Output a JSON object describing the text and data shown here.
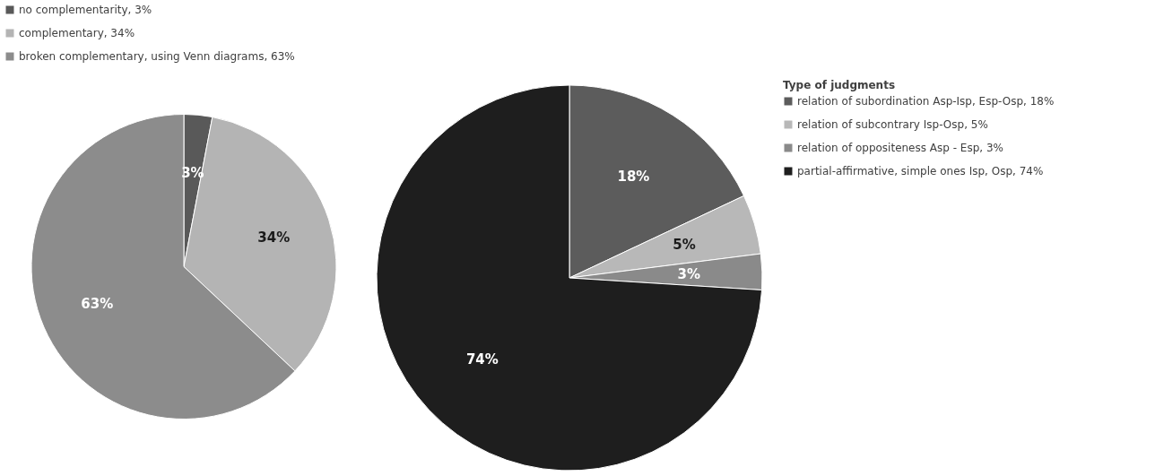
{
  "chart_data": [
    {
      "type": "pie",
      "categories": [
        "no complementarity, 3%",
        "complementary, 34%",
        "broken complementary, using Venn diagrams, 63%"
      ],
      "values": [
        3,
        34,
        63
      ],
      "value_labels": [
        "3%",
        "34%",
        "63%"
      ],
      "colors": [
        "#595959",
        "#b4b4b4",
        "#8c8c8c"
      ],
      "legend": "top left"
    },
    {
      "type": "pie",
      "legend_title": "Type of judgments",
      "categories": [
        "relation of subordination Asp-Isp, Esp-Osp, 18%",
        "relation of subcontrary Isp-Osp, 5%",
        "relation of oppositeness Asp - Esp, 3%",
        "partial-affirmative, simple ones Isp, Osp, 74%"
      ],
      "values": [
        18,
        5,
        3,
        74
      ],
      "value_labels": [
        "18%",
        "5%",
        "3%",
        "74%"
      ],
      "colors": [
        "#5c5c5c",
        "#b8b8b8",
        "#8a8a8a",
        "#1e1e1e"
      ],
      "legend": "right"
    }
  ]
}
